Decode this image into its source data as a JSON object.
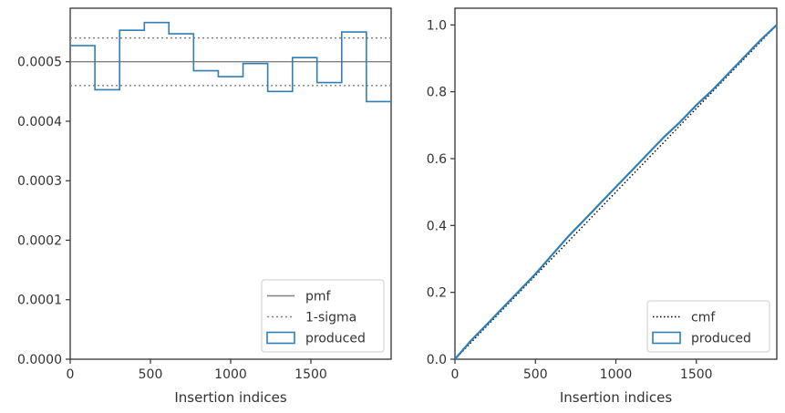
{
  "colors": {
    "produced": "#2f7fb5",
    "pmf": "#808080",
    "sigma": "#808080",
    "cmf": "#000000",
    "frame": "#333333"
  },
  "chart_data": [
    {
      "type": "histogram",
      "xlabel": "Insertion indices",
      "ylabel": "",
      "xlim": [
        0,
        2000
      ],
      "ylim": [
        0,
        0.00059
      ],
      "x_ticks": [
        0,
        500,
        1000,
        1500
      ],
      "x_tick_labels": [
        "0",
        "500",
        "1000",
        "1500"
      ],
      "y_ticks": [
        0,
        0.0001,
        0.0002,
        0.0003,
        0.0004,
        0.0005
      ],
      "y_tick_labels": [
        "0.0000",
        "0.0001",
        "0.0002",
        "0.0003",
        "0.0004",
        "0.0005"
      ],
      "grid": false,
      "legend_position": "lower-right",
      "legend": [
        "pmf",
        "1-sigma",
        "produced"
      ],
      "pmf": 0.0005,
      "sigma_band": [
        0.00046,
        0.00054
      ],
      "bin_edges": [
        0,
        154,
        308,
        462,
        615,
        769,
        923,
        1077,
        1231,
        1385,
        1538,
        1692,
        1846,
        2000
      ],
      "bin_values": [
        0.000527,
        0.000453,
        0.000553,
        0.000566,
        0.000547,
        0.000485,
        0.000475,
        0.000497,
        0.00045,
        0.000507,
        0.000465,
        0.00055,
        0.000433
      ]
    },
    {
      "type": "line",
      "xlabel": "Insertion indices",
      "ylabel": "",
      "xlim": [
        0,
        2000
      ],
      "ylim": [
        0,
        1.05
      ],
      "x_ticks": [
        0,
        500,
        1000,
        1500
      ],
      "x_tick_labels": [
        "0",
        "500",
        "1000",
        "1500"
      ],
      "y_ticks": [
        0,
        0.2,
        0.4,
        0.6,
        0.8,
        1.0
      ],
      "y_tick_labels": [
        "0.0",
        "0.2",
        "0.4",
        "0.6",
        "0.8",
        "1.0"
      ],
      "grid": false,
      "legend_position": "lower-right",
      "legend": [
        "cmf",
        "produced"
      ],
      "cmf": {
        "x": [
          0,
          2000
        ],
        "y": [
          0,
          1.0
        ]
      },
      "produced": {
        "x": [
          0,
          100,
          200,
          300,
          400,
          500,
          600,
          700,
          800,
          900,
          1000,
          1100,
          1200,
          1300,
          1400,
          1500,
          1600,
          1700,
          1800,
          1900,
          2000
        ],
        "y": [
          0,
          0.056,
          0.105,
          0.155,
          0.205,
          0.255,
          0.31,
          0.365,
          0.415,
          0.465,
          0.515,
          0.565,
          0.615,
          0.665,
          0.71,
          0.76,
          0.805,
          0.855,
          0.905,
          0.955,
          1.0
        ]
      }
    }
  ]
}
